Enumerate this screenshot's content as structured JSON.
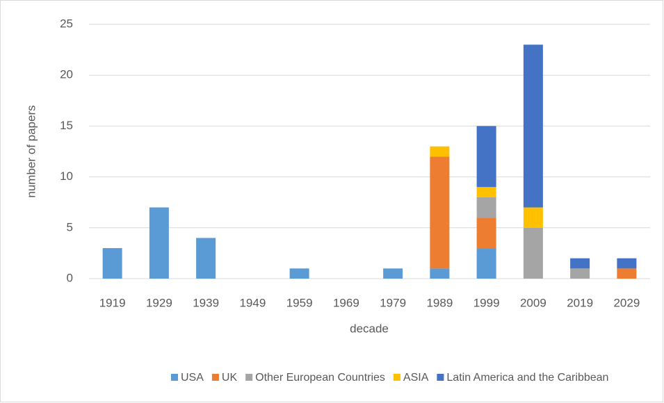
{
  "chart_data": {
    "type": "bar",
    "stacked": true,
    "x_label": "decade",
    "y_label": "number of papers",
    "categories": [
      "1919",
      "1929",
      "1939",
      "1949",
      "1959",
      "1969",
      "1979",
      "1989",
      "1999",
      "2009",
      "2019",
      "2029"
    ],
    "series": [
      {
        "name": "USA",
        "color": "#5b9bd5",
        "values": [
          3,
          7,
          4,
          0,
          1,
          0,
          1,
          1,
          3,
          0,
          0,
          0
        ]
      },
      {
        "name": "UK",
        "color": "#ed7d31",
        "values": [
          0,
          0,
          0,
          0,
          0,
          0,
          0,
          11,
          3,
          0,
          0,
          1
        ]
      },
      {
        "name": "Other European Countries",
        "color": "#a5a5a5",
        "values": [
          0,
          0,
          0,
          0,
          0,
          0,
          0,
          0,
          2,
          5,
          1,
          0
        ]
      },
      {
        "name": "ASIA",
        "color": "#ffc000",
        "values": [
          0,
          0,
          0,
          0,
          0,
          0,
          0,
          1,
          1,
          2,
          0,
          0
        ]
      },
      {
        "name": "Latin America and the Caribbean",
        "color": "#4472c4",
        "values": [
          0,
          0,
          0,
          0,
          0,
          0,
          0,
          0,
          6,
          16,
          1,
          1
        ]
      }
    ],
    "ylim": [
      0,
      25
    ],
    "yticks": [
      0,
      5,
      10,
      15,
      20,
      25
    ],
    "grid": true,
    "legend": "bottom"
  }
}
